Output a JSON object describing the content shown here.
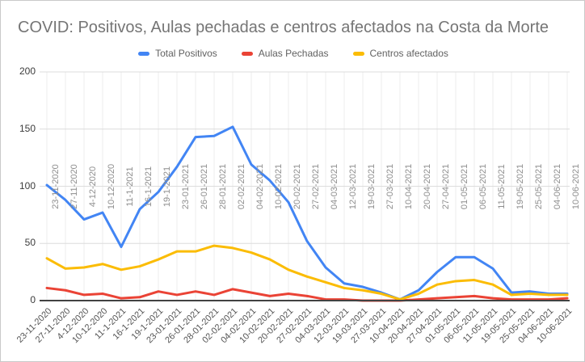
{
  "window": {
    "background": "#ffffff",
    "border_color": "#c9c9c9"
  },
  "chart_data": {
    "type": "line",
    "title": "COVID: Positivos, Aulas pechadas e centros afectados na Costa da Morte",
    "title_color": "#757575",
    "legend_position": "top",
    "grid": true,
    "ylim": [
      0,
      200
    ],
    "yticks": [
      0,
      50,
      100,
      150,
      200
    ],
    "category_labels_also_shown_mid_chart": true,
    "categories": [
      "23-11-2020",
      "27-11-2020",
      "4-12-2020",
      "10-12-2020",
      "11-1-2021",
      "16-1-2021",
      "19-1-2021",
      "23-01-2021",
      "26-01-2021",
      "28-01-2021",
      "02-02-2021",
      "04-02-2021",
      "10-02-2021",
      "20-02-2021",
      "27-02-2021",
      "04-03-2021",
      "12-03-2021",
      "19-03-2021",
      "27-03-2021",
      "10-04-2021",
      "20-04-2021",
      "27-04-2021",
      "01-05-2021",
      "06-05-2021",
      "11-05-2021",
      "19-05-2021",
      "25-05-2021",
      "04-06-2021",
      "10-06-2021"
    ],
    "series": [
      {
        "name": "Total Positivos",
        "color": "#4285F4",
        "values": [
          101,
          88,
          71,
          77,
          47,
          80,
          95,
          117,
          143,
          144,
          152,
          119,
          105,
          86,
          52,
          29,
          15,
          12,
          7,
          1,
          9,
          25,
          38,
          38,
          28,
          7,
          8,
          6,
          6
        ]
      },
      {
        "name": "Aulas Pechadas",
        "color": "#EA4335",
        "values": [
          11,
          9,
          5,
          6,
          2,
          3,
          8,
          5,
          8,
          5,
          10,
          7,
          4,
          6,
          4,
          1,
          1,
          0,
          0,
          0,
          1,
          2,
          3,
          4,
          2,
          1,
          1,
          1,
          2
        ]
      },
      {
        "name": "Centros afectados",
        "color": "#FBBC04",
        "values": [
          37,
          28,
          29,
          32,
          27,
          30,
          36,
          43,
          43,
          48,
          46,
          42,
          36,
          27,
          21,
          16,
          11,
          9,
          6,
          1,
          6,
          14,
          17,
          18,
          14,
          5,
          6,
          5,
          5
        ]
      }
    ],
    "axis_colors": {
      "baseline": "#424242",
      "vertical_grid": "#ececec",
      "horizontal_grid": "#dcdcdc"
    }
  }
}
